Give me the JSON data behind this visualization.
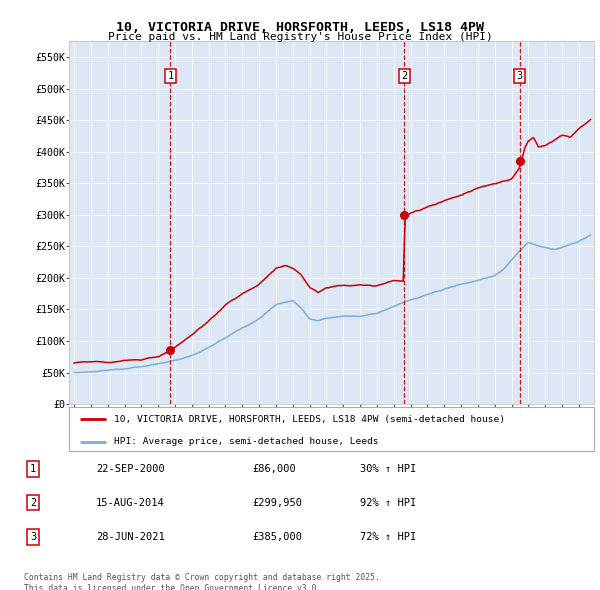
{
  "title_line1": "10, VICTORIA DRIVE, HORSFORTH, LEEDS, LS18 4PW",
  "title_line2": "Price paid vs. HM Land Registry's House Price Index (HPI)",
  "ylim": [
    0,
    575000
  ],
  "yticks": [
    0,
    50000,
    100000,
    150000,
    200000,
    250000,
    300000,
    350000,
    400000,
    450000,
    500000,
    550000
  ],
  "ytick_labels": [
    "£0",
    "£50K",
    "£100K",
    "£150K",
    "£200K",
    "£250K",
    "£300K",
    "£350K",
    "£400K",
    "£450K",
    "£500K",
    "£550K"
  ],
  "background_color": "#dce6f5",
  "red_line_color": "#cc0000",
  "blue_line_color": "#7bafd4",
  "vline_color": "#cc0000",
  "sale_years_dec": [
    2000.727,
    2014.619,
    2021.493
  ],
  "sale_prices": [
    86000,
    299950,
    385000
  ],
  "legend_red_label": "10, VICTORIA DRIVE, HORSFORTH, LEEDS, LS18 4PW (semi-detached house)",
  "legend_blue_label": "HPI: Average price, semi-detached house, Leeds",
  "footer_text": "Contains HM Land Registry data © Crown copyright and database right 2025.\nThis data is licensed under the Open Government Licence v3.0.",
  "annotation_table": [
    [
      "1",
      "22-SEP-2000",
      "£86,000",
      "30% ↑ HPI"
    ],
    [
      "2",
      "15-AUG-2014",
      "£299,950",
      "92% ↑ HPI"
    ],
    [
      "3",
      "28-JUN-2021",
      "£385,000",
      "72% ↑ HPI"
    ]
  ]
}
